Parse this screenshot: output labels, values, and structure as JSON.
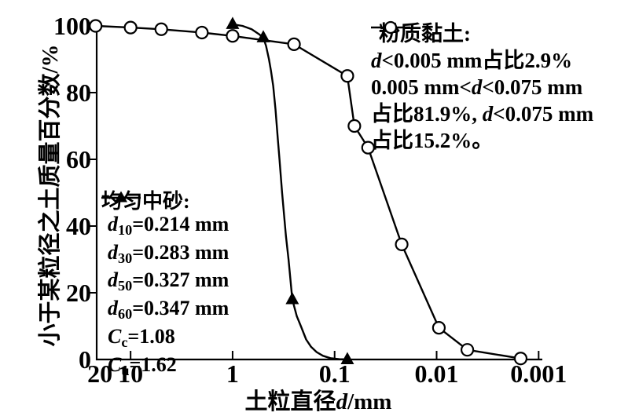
{
  "colors": {
    "ink": "#000000",
    "paper": "#ffffff"
  },
  "chart_data": {
    "type": "line",
    "title": "",
    "x_axis": {
      "label": "土粒直径d/mm",
      "scale": "log10-reversed",
      "unit": "mm",
      "tick_values": [
        20,
        10,
        1,
        0.1,
        0.01,
        0.001
      ],
      "tick_labels": [
        "20",
        "10",
        "1",
        "0.1",
        "0.01",
        "0.001"
      ],
      "domain": [
        21.5,
        0.00092
      ]
    },
    "y_axis": {
      "label": "小于某粒径之土质量百分数/%",
      "unit": "%",
      "tick_values": [
        0,
        20,
        40,
        60,
        80,
        100
      ],
      "tick_labels": [
        "0",
        "20",
        "40",
        "60",
        "80",
        "100"
      ],
      "range": [
        0,
        100
      ]
    },
    "grid": false,
    "legend_positions": {
      "silty_clay": "inside-upper-right",
      "medium_sand": "inside-lower-left"
    },
    "series": [
      {
        "id": "silty_clay",
        "name": "粉质黏土",
        "marker": "circle",
        "stats": [
          "d<0.005 mm占比2.9%",
          "0.005 mm<d<0.075 mm",
          "占比81.9%, d<0.075 mm",
          "占比15.2%。"
        ],
        "points": [
          [
            22,
            100
          ],
          [
            10,
            99.5
          ],
          [
            5,
            99
          ],
          [
            2,
            98
          ],
          [
            1,
            97
          ],
          [
            0.25,
            94.5
          ],
          [
            0.075,
            85
          ],
          [
            0.064,
            70
          ],
          [
            0.047,
            63.5
          ],
          [
            0.022,
            34.5
          ],
          [
            0.0095,
            9.5
          ],
          [
            0.005,
            2.9
          ],
          [
            0.0015,
            0.3
          ]
        ],
        "marker_points": "all"
      },
      {
        "id": "medium_sand",
        "name": "均匀中砂",
        "marker": "triangle",
        "stats": [
          "d10=0.214 mm",
          "d30=0.283 mm",
          "d50=0.327 mm",
          "d60=0.347 mm",
          "Cc=1.08",
          "Cu=1.62"
        ],
        "points": [
          [
            1,
            100.5
          ],
          [
            0.8,
            100
          ],
          [
            0.65,
            99
          ],
          [
            0.55,
            97.5
          ],
          [
            0.5,
            96.5
          ],
          [
            0.47,
            94
          ],
          [
            0.44,
            90
          ],
          [
            0.42,
            86.5
          ],
          [
            0.4,
            82
          ],
          [
            0.38,
            75
          ],
          [
            0.36,
            66
          ],
          [
            0.347,
            60
          ],
          [
            0.327,
            50
          ],
          [
            0.3,
            37
          ],
          [
            0.283,
            30
          ],
          [
            0.26,
            18
          ],
          [
            0.235,
            13
          ],
          [
            0.214,
            10
          ],
          [
            0.19,
            6
          ],
          [
            0.17,
            3.8
          ],
          [
            0.15,
            2.2
          ],
          [
            0.13,
            1.1
          ],
          [
            0.11,
            0.4
          ],
          [
            0.09,
            0.1
          ],
          [
            0.075,
            0
          ]
        ],
        "marker_points": [
          [
            1,
            100.5
          ],
          [
            0.5,
            96.5
          ],
          [
            0.26,
            18
          ],
          [
            0.075,
            0
          ]
        ]
      }
    ]
  },
  "axis_titles": {
    "x_segments": [
      {
        "t": "土粒直径"
      },
      {
        "t": "d",
        "i": true
      },
      {
        "t": "/mm"
      }
    ],
    "y": "小于某粒径之土质量百分数/%"
  },
  "legends": {
    "silty_clay": {
      "marker": "circle",
      "title_segments": [
        {
          "t": "粉质黏土:"
        }
      ],
      "lines": [
        [
          {
            "t": "d",
            "i": true
          },
          {
            "t": "<0.005 mm占比2.9%"
          }
        ],
        [
          {
            "t": "0.005 mm<"
          },
          {
            "t": "d",
            "i": true
          },
          {
            "t": "<0.075 mm"
          }
        ],
        [
          {
            "t": "占比81.9%, "
          },
          {
            "t": "d",
            "i": true
          },
          {
            "t": "<0.075 mm"
          }
        ],
        [
          {
            "t": "占比15.2%。"
          }
        ]
      ]
    },
    "medium_sand": {
      "marker": "triangle",
      "title_segments": [
        {
          "t": "均匀中砂:"
        }
      ],
      "lines": [
        [
          {
            "t": "d",
            "i": true
          },
          {
            "t": "10",
            "s": true
          },
          {
            "t": "=0.214 mm"
          }
        ],
        [
          {
            "t": "d",
            "i": true
          },
          {
            "t": "30",
            "s": true
          },
          {
            "t": "=0.283 mm"
          }
        ],
        [
          {
            "t": "d",
            "i": true
          },
          {
            "t": "50",
            "s": true
          },
          {
            "t": "=0.327 mm"
          }
        ],
        [
          {
            "t": "d",
            "i": true
          },
          {
            "t": "60",
            "s": true
          },
          {
            "t": "=0.347 mm"
          }
        ],
        [
          {
            "t": "C",
            "i": true
          },
          {
            "t": "c",
            "s": true
          },
          {
            "t": "=1.08"
          }
        ],
        [
          {
            "t": "C",
            "i": true
          },
          {
            "t": "u",
            "s": true
          },
          {
            "t": "=1.62"
          }
        ]
      ]
    }
  }
}
